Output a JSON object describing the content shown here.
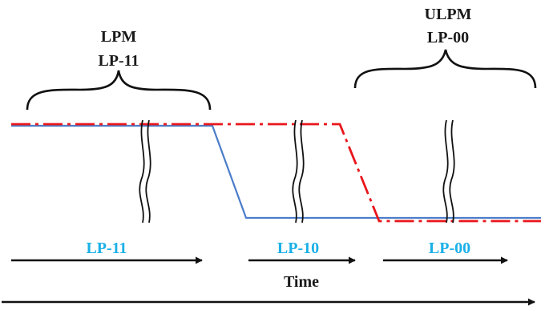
{
  "groups": [
    {
      "line1": "LPM",
      "line2": "LP-11"
    },
    {
      "line1": "ULPM",
      "line2": "LP-00"
    }
  ],
  "states": [
    {
      "label": "LP-11"
    },
    {
      "label": "LP-10"
    },
    {
      "label": "LP-00"
    }
  ],
  "time_label": "Time",
  "colors": {
    "blue_signal": "#4a7cc9",
    "red_signal": "#e8161c",
    "state_label": "#1ab0e8",
    "ink": "#111111"
  }
}
